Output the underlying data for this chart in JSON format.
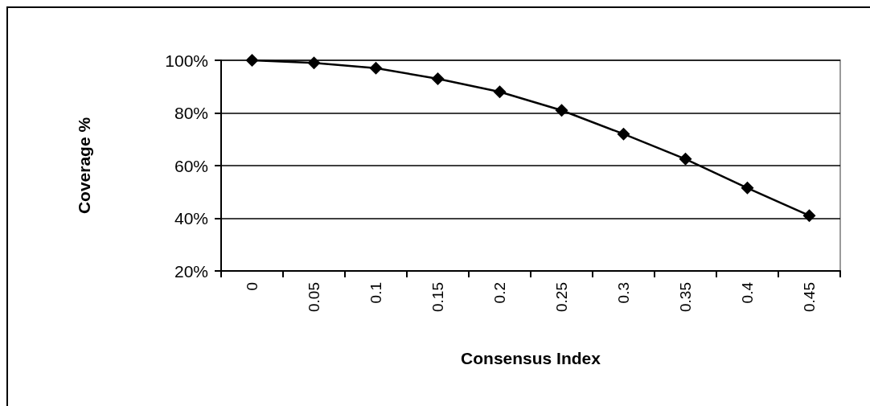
{
  "chart_data": {
    "type": "line",
    "xlabel": "Consensus Index",
    "ylabel": "Coverage %",
    "categories": [
      "0",
      "0.05",
      "0.1",
      "0.15",
      "0.2",
      "0.25",
      "0.3",
      "0.35",
      "0.4",
      "0.45"
    ],
    "series": [
      {
        "color": "#000000",
        "values": [
          100,
          99,
          97,
          93,
          88,
          81,
          72,
          62.5,
          51.5,
          41
        ]
      }
    ],
    "ylim": [
      20,
      100
    ],
    "yticks": [
      {
        "value": 20,
        "label": "20%"
      },
      {
        "value": 40,
        "label": "40%"
      },
      {
        "value": 60,
        "label": "60%"
      },
      {
        "value": 80,
        "label": "80%"
      },
      {
        "value": 100,
        "label": "100%"
      }
    ],
    "grid": "y",
    "marker": "diamond",
    "line_style": "solid"
  }
}
